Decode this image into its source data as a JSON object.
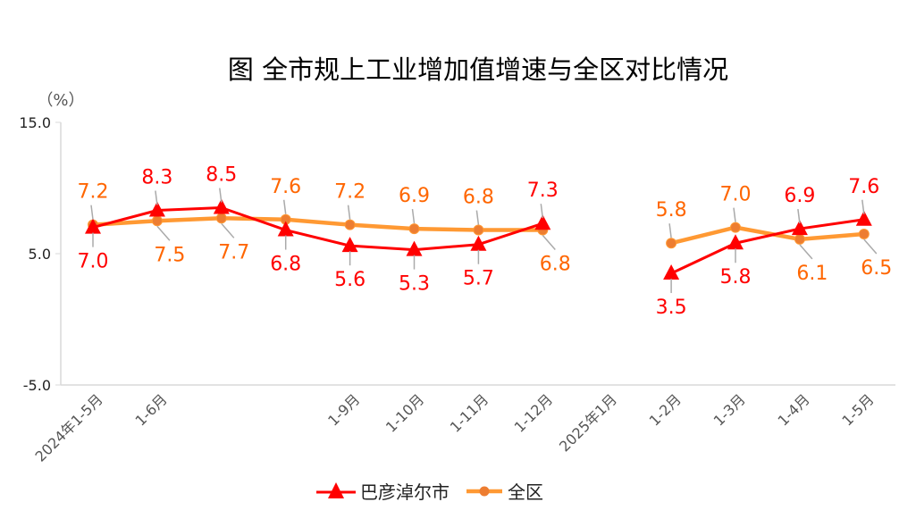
{
  "chart_data": {
    "type": "line",
    "title": "图 全市规上工业增加值增速与全区对比情况",
    "ylabel": "（%）",
    "ylim": [
      -5,
      15
    ],
    "yticks": [
      "15.0",
      "5.0",
      "-5.0"
    ],
    "ytick_values": [
      15,
      5,
      -5
    ],
    "categories": [
      "2024年1-5月",
      "1-6月",
      "",
      "",
      "1-9月",
      "1-10月",
      "1-11月",
      "1-12月",
      "2025年1月",
      "1-2月",
      "1-3月",
      "1-4月",
      "1-5月"
    ],
    "series": [
      {
        "name": "巴彦淖尔市",
        "color": "#ff0000",
        "marker": "triangle",
        "values": [
          7.0,
          8.3,
          8.5,
          6.8,
          5.6,
          5.3,
          5.7,
          7.3,
          null,
          3.5,
          5.8,
          6.9,
          7.6
        ],
        "labels": [
          "7.0",
          "8.3",
          "8.5",
          "6.8",
          "5.6",
          "5.3",
          "5.7",
          "7.3",
          "",
          "3.5",
          "5.8",
          "6.9",
          "7.6"
        ]
      },
      {
        "name": "全区",
        "color": "#ff9933",
        "marker": "circle",
        "label_color": "#ff6600",
        "values": [
          7.2,
          7.5,
          7.7,
          7.6,
          7.2,
          6.9,
          6.8,
          6.8,
          null,
          5.8,
          7.0,
          6.1,
          6.5
        ],
        "labels": [
          "7.2",
          "7.5",
          "7.7",
          "7.6",
          "7.2",
          "6.9",
          "6.8",
          "6.8",
          "",
          "5.8",
          "7.0",
          "6.1",
          "6.5"
        ]
      }
    ],
    "legend": "bottom",
    "grid": false
  }
}
